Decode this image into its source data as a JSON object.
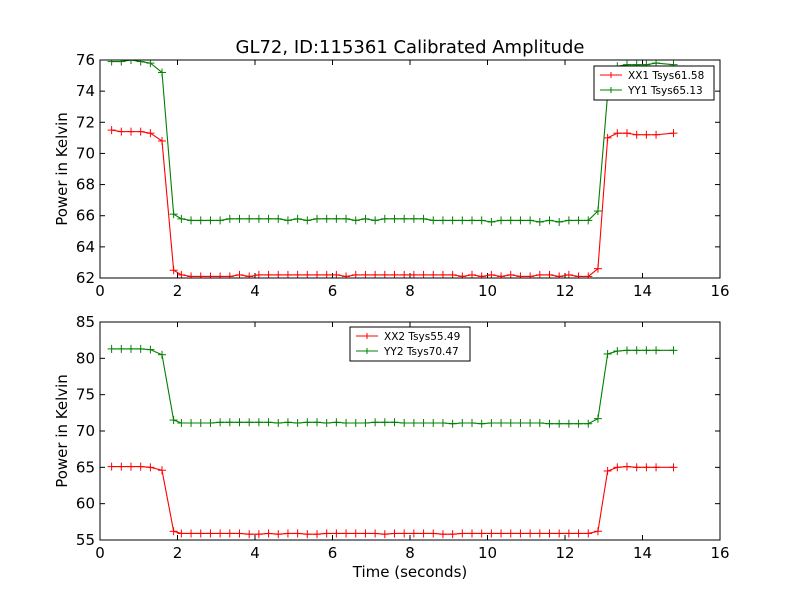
{
  "figure": {
    "title": "GL72, ID:115361 Calibrated Amplitude"
  },
  "chart_data": [
    {
      "type": "line",
      "xlabel": "",
      "ylabel": "Power in Kelvin",
      "xlim": [
        0,
        16
      ],
      "ylim": [
        62,
        76
      ],
      "xticks": [
        "0",
        "2",
        "4",
        "6",
        "8",
        "10",
        "12",
        "14",
        "16"
      ],
      "yticks": [
        "62",
        "64",
        "66",
        "68",
        "70",
        "72",
        "74",
        "76"
      ],
      "grid": false,
      "legend_position": "top-right",
      "marker": "+",
      "x": [
        0.3,
        0.55,
        0.8,
        1.05,
        1.3,
        1.6,
        1.9,
        2.1,
        2.35,
        2.6,
        2.85,
        3.1,
        3.35,
        3.6,
        3.85,
        4.1,
        4.35,
        4.6,
        4.85,
        5.1,
        5.35,
        5.6,
        5.85,
        6.1,
        6.35,
        6.6,
        6.85,
        7.1,
        7.35,
        7.6,
        7.85,
        8.1,
        8.35,
        8.6,
        8.85,
        9.1,
        9.35,
        9.6,
        9.85,
        10.1,
        10.35,
        10.6,
        10.85,
        11.1,
        11.35,
        11.6,
        11.85,
        12.1,
        12.35,
        12.6,
        12.85,
        13.1,
        13.35,
        13.6,
        13.85,
        14.1,
        14.35,
        14.8
      ],
      "series": [
        {
          "name": "XX1 Tsys61.58",
          "color": "#ff0000",
          "values": [
            71.5,
            71.4,
            71.4,
            71.4,
            71.3,
            70.8,
            62.5,
            62.2,
            62.1,
            62.1,
            62.1,
            62.1,
            62.1,
            62.2,
            62.1,
            62.2,
            62.2,
            62.2,
            62.2,
            62.2,
            62.2,
            62.2,
            62.2,
            62.2,
            62.1,
            62.2,
            62.2,
            62.2,
            62.2,
            62.2,
            62.2,
            62.2,
            62.2,
            62.2,
            62.2,
            62.2,
            62.1,
            62.2,
            62.1,
            62.2,
            62.1,
            62.2,
            62.1,
            62.1,
            62.2,
            62.2,
            62.1,
            62.2,
            62.1,
            62.1,
            62.6,
            71.0,
            71.3,
            71.3,
            71.2,
            71.2,
            71.2,
            71.3
          ]
        },
        {
          "name": "YY1 Tsys65.13",
          "color": "#008000",
          "values": [
            75.9,
            75.9,
            76.0,
            75.9,
            75.8,
            75.2,
            66.1,
            65.8,
            65.7,
            65.7,
            65.7,
            65.7,
            65.8,
            65.8,
            65.8,
            65.8,
            65.8,
            65.8,
            65.7,
            65.8,
            65.7,
            65.8,
            65.8,
            65.8,
            65.8,
            65.7,
            65.8,
            65.7,
            65.8,
            65.8,
            65.8,
            65.8,
            65.8,
            65.7,
            65.7,
            65.7,
            65.7,
            65.7,
            65.7,
            65.6,
            65.7,
            65.7,
            65.7,
            65.7,
            65.6,
            65.7,
            65.6,
            65.7,
            65.7,
            65.7,
            66.3,
            73.8,
            75.6,
            75.7,
            75.7,
            75.7,
            75.8,
            75.7
          ]
        }
      ]
    },
    {
      "type": "line",
      "xlabel": "Time (seconds)",
      "ylabel": "Power in Kelvin",
      "xlim": [
        0,
        16
      ],
      "ylim": [
        55,
        85
      ],
      "xticks": [
        "0",
        "2",
        "4",
        "6",
        "8",
        "10",
        "12",
        "14",
        "16"
      ],
      "yticks": [
        "55",
        "60",
        "65",
        "70",
        "75",
        "80",
        "85"
      ],
      "grid": false,
      "legend_position": "top-center",
      "marker": "+",
      "x": [
        0.3,
        0.55,
        0.8,
        1.05,
        1.3,
        1.6,
        1.9,
        2.1,
        2.35,
        2.6,
        2.85,
        3.1,
        3.35,
        3.6,
        3.85,
        4.1,
        4.35,
        4.6,
        4.85,
        5.1,
        5.35,
        5.6,
        5.85,
        6.1,
        6.35,
        6.6,
        6.85,
        7.1,
        7.35,
        7.6,
        7.85,
        8.1,
        8.35,
        8.6,
        8.85,
        9.1,
        9.35,
        9.6,
        9.85,
        10.1,
        10.35,
        10.6,
        10.85,
        11.1,
        11.35,
        11.6,
        11.85,
        12.1,
        12.35,
        12.6,
        12.85,
        13.1,
        13.35,
        13.6,
        13.85,
        14.1,
        14.35,
        14.8
      ],
      "series": [
        {
          "name": "XX2 Tsys55.49",
          "color": "#ff0000",
          "values": [
            65.1,
            65.1,
            65.1,
            65.1,
            65.0,
            64.6,
            56.2,
            55.9,
            55.9,
            55.9,
            55.9,
            55.9,
            55.9,
            55.9,
            55.8,
            55.8,
            55.9,
            55.8,
            55.9,
            55.9,
            55.8,
            55.8,
            55.9,
            55.9,
            55.9,
            55.9,
            55.9,
            55.9,
            55.8,
            55.9,
            55.9,
            55.9,
            55.9,
            55.9,
            55.8,
            55.8,
            55.9,
            55.9,
            55.9,
            55.9,
            55.9,
            55.9,
            55.9,
            55.9,
            55.9,
            55.9,
            55.9,
            55.9,
            55.9,
            55.9,
            56.2,
            64.5,
            65.0,
            65.1,
            65.0,
            65.0,
            65.0,
            65.0
          ]
        },
        {
          "name": "YY2 Tsys70.47",
          "color": "#008000",
          "values": [
            81.3,
            81.3,
            81.3,
            81.3,
            81.2,
            80.5,
            71.5,
            71.1,
            71.1,
            71.1,
            71.1,
            71.2,
            71.2,
            71.2,
            71.2,
            71.2,
            71.2,
            71.1,
            71.2,
            71.1,
            71.2,
            71.2,
            71.1,
            71.2,
            71.1,
            71.1,
            71.1,
            71.2,
            71.2,
            71.2,
            71.1,
            71.1,
            71.1,
            71.1,
            71.1,
            71.0,
            71.1,
            71.1,
            71.0,
            71.1,
            71.1,
            71.1,
            71.1,
            71.1,
            71.1,
            71.0,
            71.0,
            71.0,
            71.0,
            71.0,
            71.7,
            80.6,
            81.0,
            81.1,
            81.1,
            81.1,
            81.1,
            81.1
          ]
        }
      ]
    }
  ]
}
